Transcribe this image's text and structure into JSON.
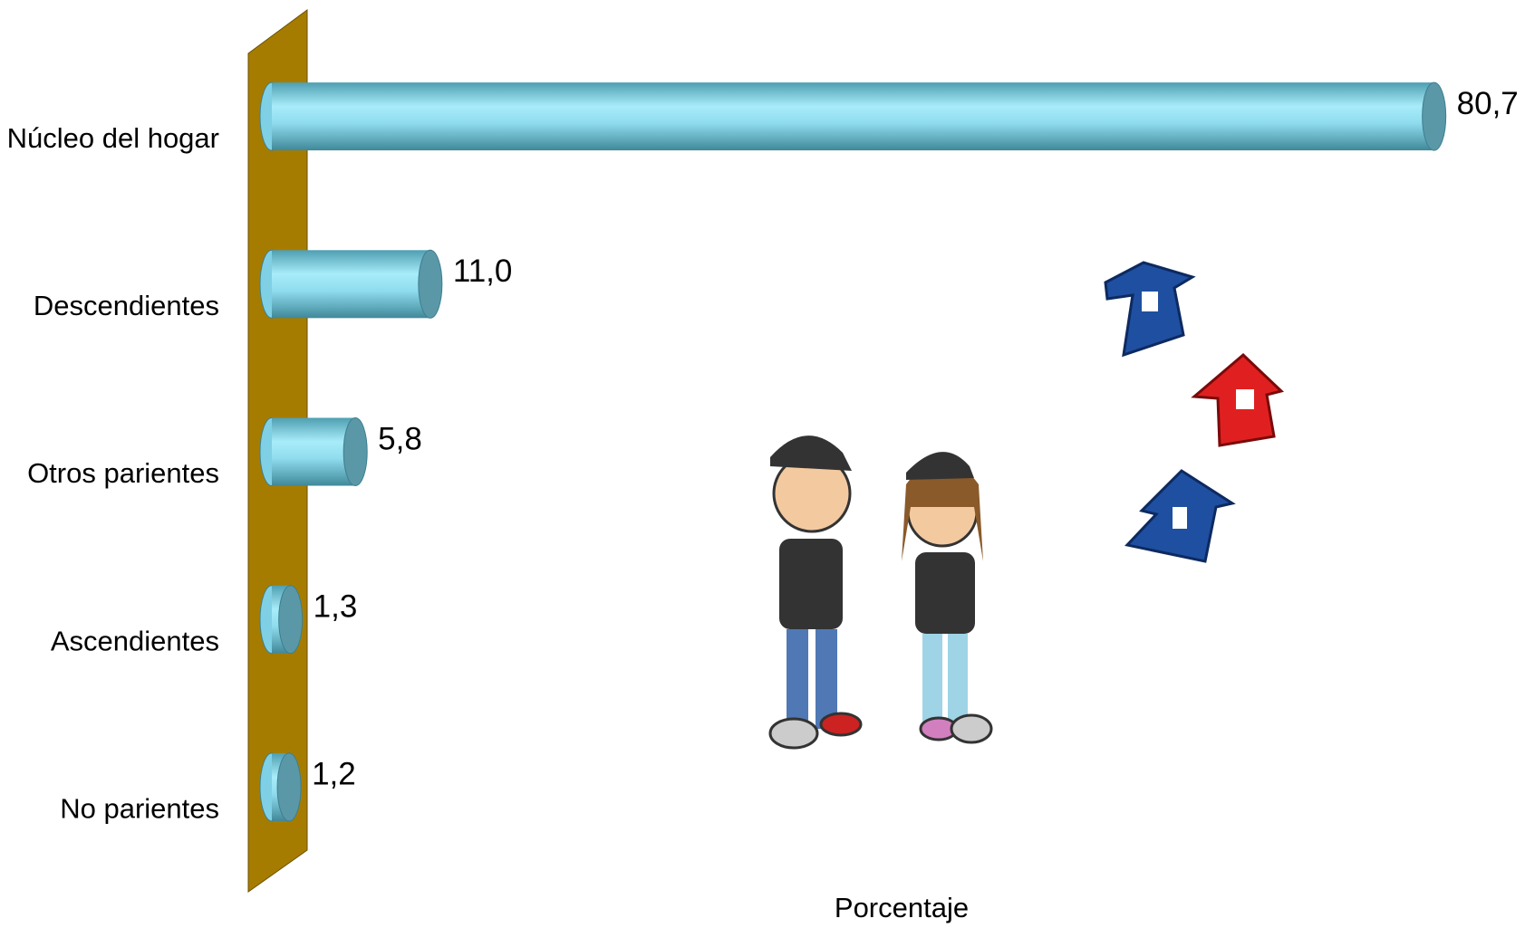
{
  "chart_data": {
    "type": "bar",
    "orientation": "horizontal",
    "categories": [
      "Núcleo del hogar",
      "Descendientes",
      "Otros parientes",
      "Ascendientes",
      "No parientes"
    ],
    "values": [
      80.7,
      11.0,
      5.8,
      1.3,
      1.2
    ],
    "value_labels": [
      "80,7",
      "11,0",
      "5,8",
      "1,3",
      "1,2"
    ],
    "color": "#7fd0e4",
    "xlim": [
      0,
      85
    ],
    "xlabel": "Porcentaje"
  }
}
